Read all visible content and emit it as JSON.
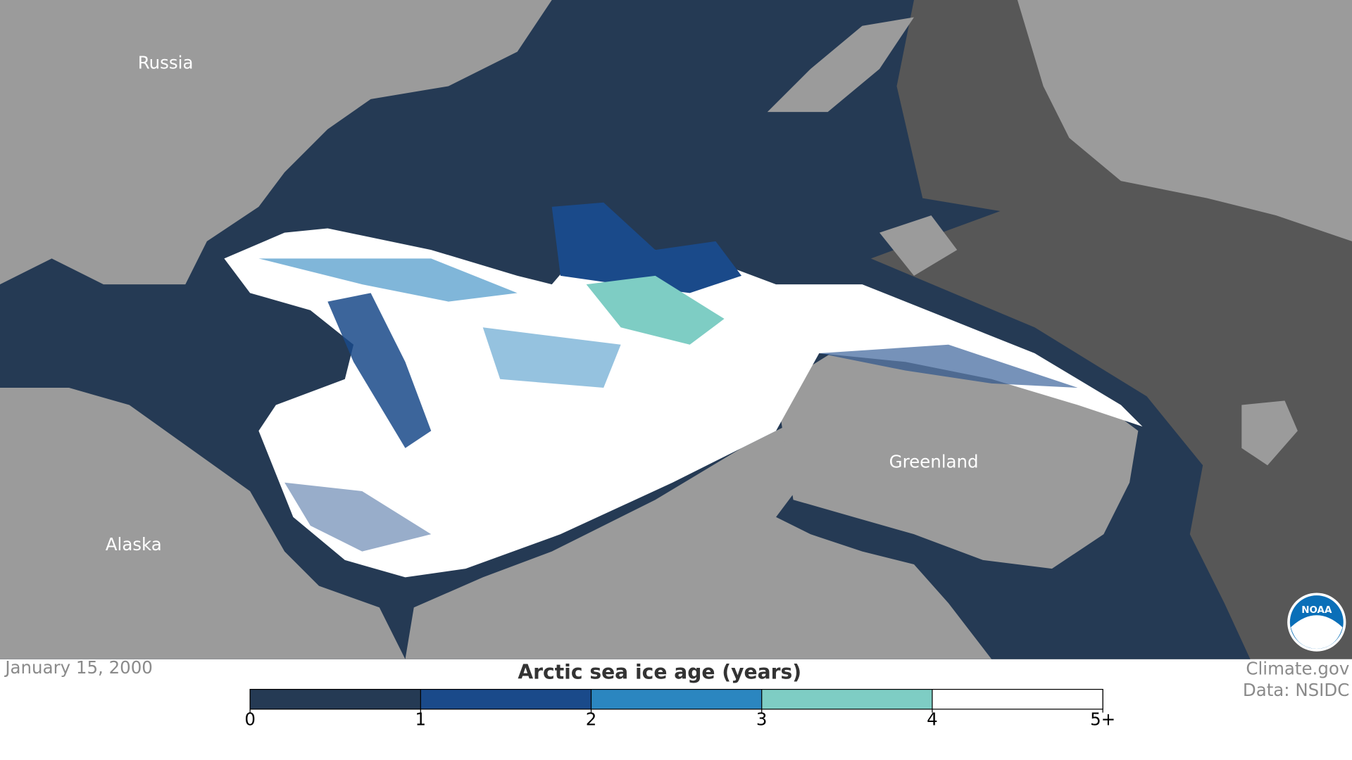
{
  "map": {
    "labels": [
      "Russia",
      "Alaska",
      "Greenland"
    ]
  },
  "date": "January 15, 2000",
  "legend": {
    "title": "Arctic sea ice age (years)",
    "ticks": [
      0,
      1,
      2,
      3,
      4,
      {
        "value": 5,
        "label": "5+"
      }
    ],
    "colors": [
      "#253a54",
      "#1a4a8a",
      "#2b86c0",
      "#7ecdc4",
      "#ffffff"
    ]
  },
  "credits": [
    "Climate.gov",
    "Data: NSIDC"
  ],
  "logo": "NOAA"
}
